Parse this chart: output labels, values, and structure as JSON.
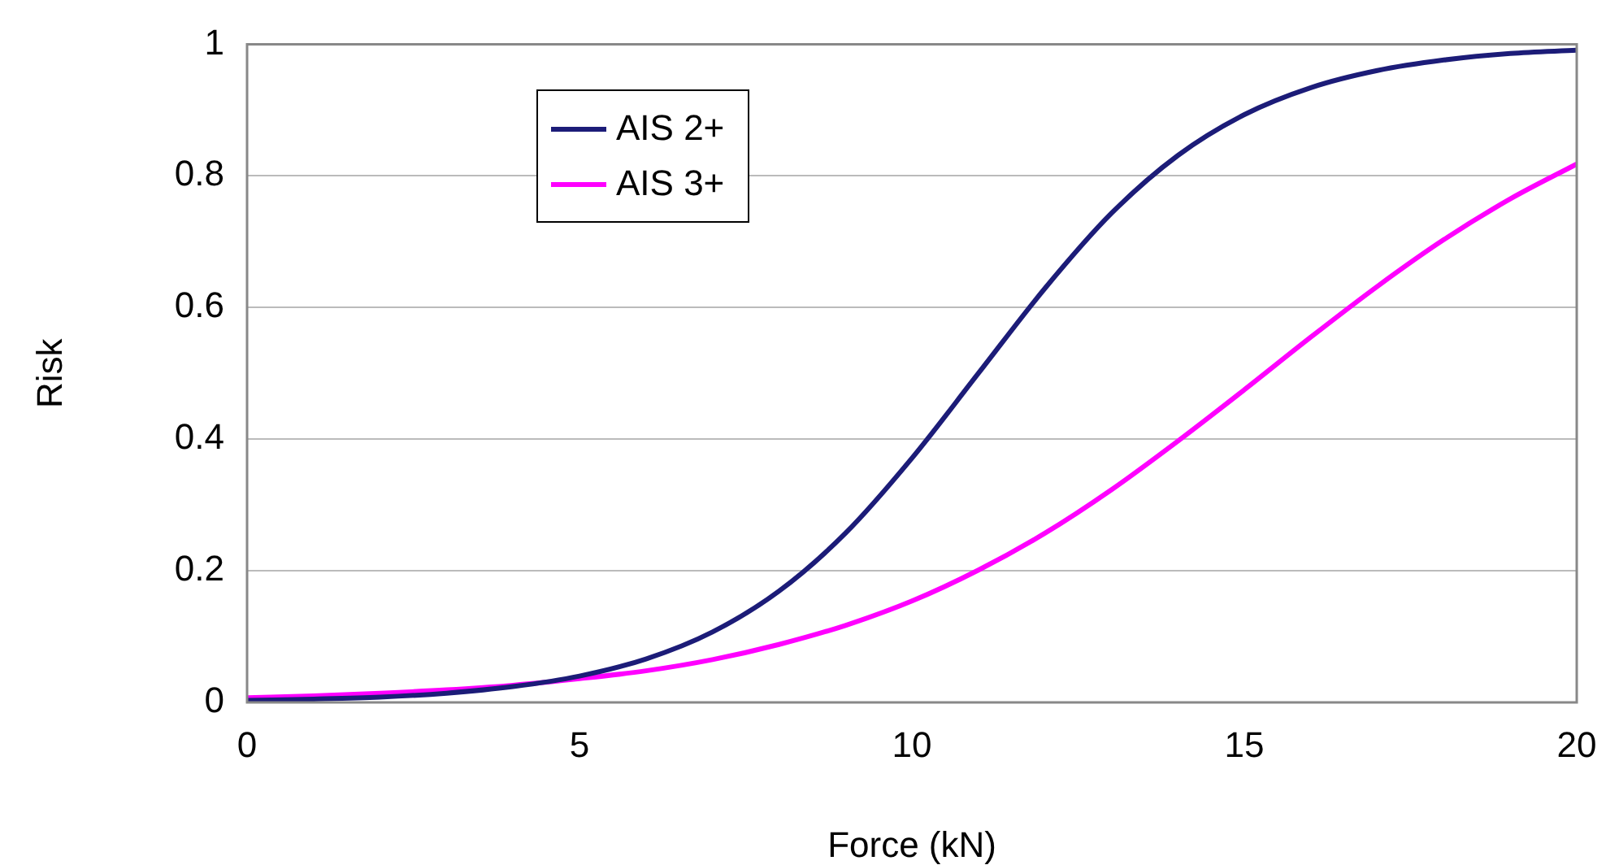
{
  "chart_data": {
    "type": "line",
    "xlabel": "Force (kN)",
    "ylabel": "Risk",
    "x": [
      0,
      1,
      2,
      3,
      4,
      5,
      6,
      7,
      8,
      9,
      10,
      11,
      12,
      13,
      14,
      15,
      16,
      17,
      18,
      19,
      20
    ],
    "series": [
      {
        "name": "AIS 2+",
        "color": "#1c1c78",
        "values": [
          0.003,
          0.005,
          0.008,
          0.014,
          0.024,
          0.04,
          0.066,
          0.107,
          0.169,
          0.257,
          0.371,
          0.5,
          0.629,
          0.743,
          0.831,
          0.893,
          0.934,
          0.96,
          0.976,
          0.986,
          0.991
        ]
      },
      {
        "name": "AIS 3+",
        "color": "#ff00ff",
        "values": [
          0.007,
          0.01,
          0.014,
          0.019,
          0.026,
          0.036,
          0.048,
          0.065,
          0.088,
          0.117,
          0.154,
          0.201,
          0.257,
          0.323,
          0.397,
          0.475,
          0.555,
          0.632,
          0.703,
          0.765,
          0.818
        ]
      }
    ],
    "xlim": [
      0,
      20
    ],
    "xticks": [
      0,
      5,
      10,
      15,
      20
    ],
    "ylim": [
      0,
      1
    ],
    "yticks": [
      0,
      0.2,
      0.4,
      0.6,
      0.8,
      1
    ],
    "grid": "y",
    "legend": "top left",
    "marker": "none",
    "line_style": "solid"
  }
}
